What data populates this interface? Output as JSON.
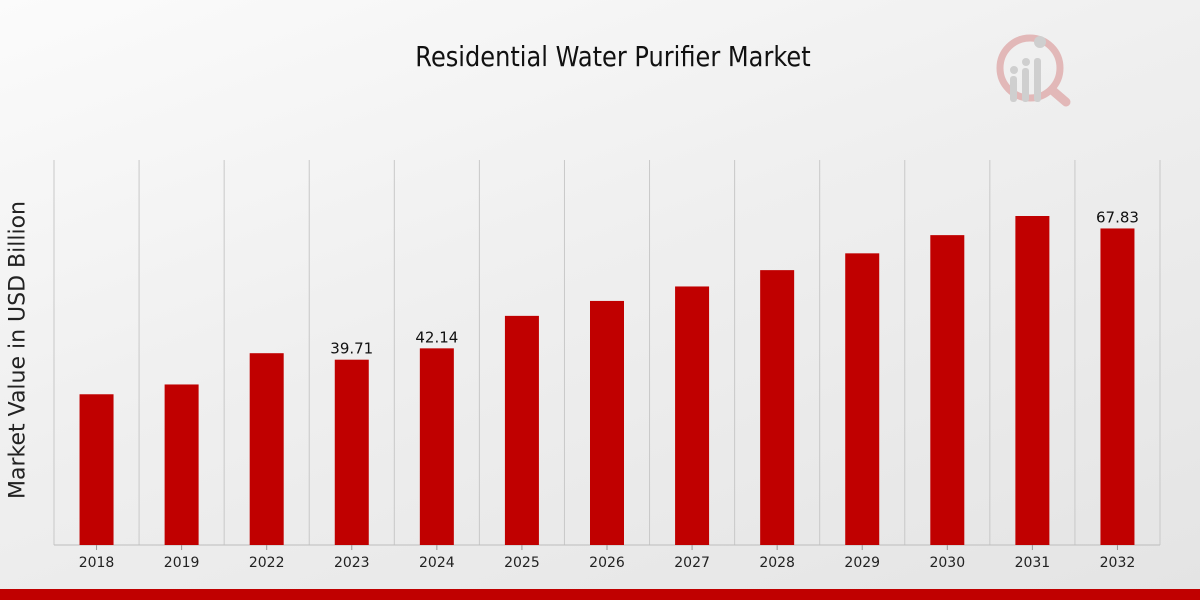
{
  "chart_data": {
    "type": "bar",
    "title": "Residential Water Purifier Market",
    "xlabel": "",
    "ylabel": "Market Value in USD Billion",
    "categories": [
      "2018",
      "2019",
      "2022",
      "2023",
      "2024",
      "2025",
      "2026",
      "2027",
      "2028",
      "2029",
      "2030",
      "2031",
      "2032"
    ],
    "values": [
      32.3,
      34.4,
      41.1,
      39.71,
      42.14,
      49.1,
      52.3,
      55.4,
      58.9,
      62.5,
      66.4,
      70.5,
      67.83
    ],
    "data_labels": [
      {
        "index": 3,
        "text": "39.71"
      },
      {
        "index": 4,
        "text": "42.14"
      },
      {
        "index": 12,
        "text": "67.83"
      }
    ],
    "ylim": [
      0,
      82.5
    ],
    "grid": "vertical",
    "bar_color": "#c00000"
  },
  "colors": {
    "accent": "#c00000",
    "logo": "#d9a0a0"
  }
}
